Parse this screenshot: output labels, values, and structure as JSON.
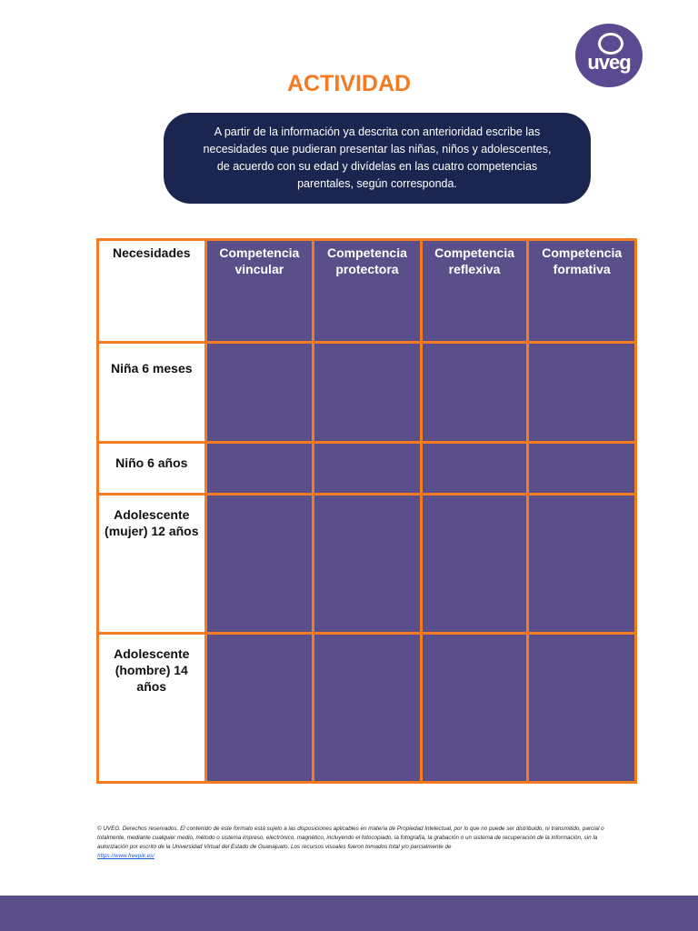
{
  "logo": {
    "text": "uveg"
  },
  "title": "ACTIVIDAD",
  "instructions": "A partir de la información ya descrita con anterioridad escribe las necesidades que pudieran presentar las niñas, niños y adolescentes, de acuerdo con su edad y divídelas en las cuatro competencias parentales, según corresponda.",
  "table": {
    "corner": "Necesidades",
    "columns": [
      "Competencia vincular",
      "Competencia protectora",
      "Competencia reflexiva",
      "Competencia formativa"
    ],
    "rows": [
      "Niña 6 meses",
      "Niño 6 años",
      "Adolescente (mujer) 12 años",
      "Adolescente (hombre) 14 años"
    ]
  },
  "footer": {
    "text": "© UVEG. Derechos reservados. El contenido de este formato está sujeto a las disposiciones aplicables en materia de Propiedad Intelectual, por lo que no puede ser distribuido, ni transmitido, parcial o totalmente, mediante cualquier medio, método o sistema impreso, electrónico, magnético, incluyendo el fotocopiado, la fotografía, la grabación o un sistema de recuperación de la información, sin la autorización por escrito de la Universidad Virtual del Estado de Guanajuato. Los recursos visuales fueron tomados total y/o parcialmente de",
    "link": "https://www.freepik.es/"
  },
  "colors": {
    "orange": "#f47b20",
    "purple": "#5b4f8a",
    "navy": "#1b2650"
  }
}
